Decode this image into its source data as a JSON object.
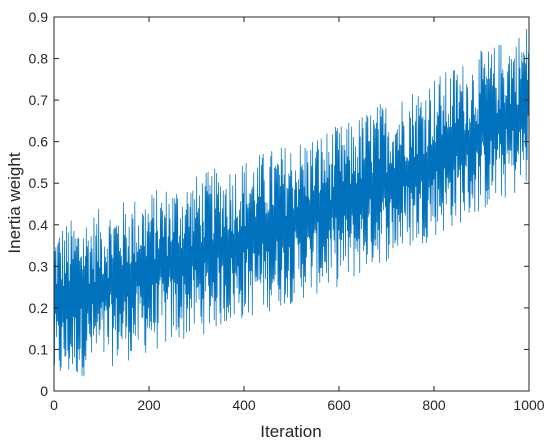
{
  "chart_data": {
    "type": "line",
    "title": "",
    "xlabel": "Iteration",
    "ylabel": "Inertia weight",
    "xlim": [
      0,
      1000
    ],
    "ylim": [
      0,
      0.9
    ],
    "xticks": [
      0,
      200,
      400,
      600,
      800,
      1000
    ],
    "yticks": [
      0,
      0.1,
      0.2,
      0.3,
      0.4,
      0.5,
      0.6,
      0.7,
      0.8,
      0.9
    ],
    "grid": false,
    "legend": "none",
    "series": [
      {
        "color": "#0072BD",
        "n_points": 1000,
        "description_values": {
          "lower_envelope_start": 0.0,
          "lower_envelope_end": 0.5,
          "upper_envelope_start": 0.4,
          "upper_envelope_end": 0.9
        },
        "x": [
          0,
          25,
          50,
          75,
          100,
          125,
          150,
          175,
          200,
          225,
          250,
          275,
          300,
          325,
          350,
          375,
          400,
          425,
          450,
          475,
          500,
          525,
          550,
          575,
          600,
          625,
          650,
          675,
          700,
          725,
          750,
          775,
          800,
          825,
          850,
          875,
          900,
          925,
          950,
          975,
          1000
        ],
        "y_min": [
          0.01,
          0.02,
          0.03,
          0.04,
          0.05,
          0.06,
          0.07,
          0.08,
          0.09,
          0.1,
          0.11,
          0.12,
          0.13,
          0.14,
          0.15,
          0.16,
          0.17,
          0.18,
          0.19,
          0.2,
          0.21,
          0.22,
          0.23,
          0.24,
          0.25,
          0.26,
          0.28,
          0.3,
          0.31,
          0.32,
          0.34,
          0.35,
          0.37,
          0.38,
          0.4,
          0.41,
          0.43,
          0.44,
          0.46,
          0.47,
          0.5
        ],
        "y_max": [
          0.4,
          0.41,
          0.42,
          0.43,
          0.44,
          0.45,
          0.46,
          0.47,
          0.48,
          0.49,
          0.5,
          0.51,
          0.52,
          0.53,
          0.54,
          0.55,
          0.56,
          0.57,
          0.58,
          0.59,
          0.6,
          0.61,
          0.62,
          0.63,
          0.64,
          0.65,
          0.67,
          0.69,
          0.7,
          0.71,
          0.73,
          0.74,
          0.76,
          0.77,
          0.79,
          0.8,
          0.82,
          0.83,
          0.85,
          0.86,
          0.89
        ]
      }
    ]
  }
}
